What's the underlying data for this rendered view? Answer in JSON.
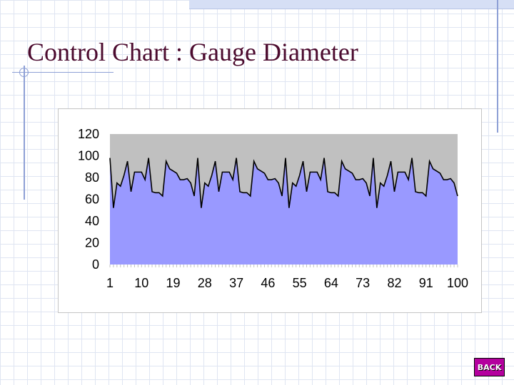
{
  "slide": {
    "title": "Control Chart : Gauge Diameter",
    "back_label": "BACK"
  },
  "colors": {
    "plot_background": "#c0c0c0",
    "area_fill": "#9999ff",
    "line": "#000000",
    "title": "#4b0a2e",
    "back_button": "#b4009e"
  },
  "chart_data": {
    "type": "area",
    "title": "",
    "xlabel": "",
    "ylabel": "",
    "ylim": [
      0,
      120
    ],
    "yticks": [
      0,
      20,
      40,
      60,
      80,
      100,
      120
    ],
    "xlim": [
      1,
      100
    ],
    "xticks": [
      1,
      10,
      19,
      28,
      37,
      46,
      55,
      64,
      73,
      82,
      91,
      100
    ],
    "grid": false,
    "legend": "none",
    "x": [
      1,
      2,
      3,
      4,
      5,
      6,
      7,
      8,
      9,
      10,
      11,
      12,
      13,
      14,
      15,
      16,
      17,
      18,
      19,
      20,
      21,
      22,
      23,
      24,
      25,
      26,
      27,
      28,
      29,
      30,
      31,
      32,
      33,
      34,
      35,
      36,
      37,
      38,
      39,
      40,
      41,
      42,
      43,
      44,
      45,
      46,
      47,
      48,
      49,
      50,
      51,
      52,
      53,
      54,
      55,
      56,
      57,
      58,
      59,
      60,
      61,
      62,
      63,
      64,
      65,
      66,
      67,
      68,
      69,
      70,
      71,
      72,
      73,
      74,
      75,
      76,
      77,
      78,
      79,
      80,
      81,
      82,
      83,
      84,
      85,
      86,
      87,
      88,
      89,
      90,
      91,
      92,
      93,
      94,
      95,
      96,
      97,
      98,
      99,
      100
    ],
    "y": [
      98,
      52,
      75,
      72,
      82,
      95,
      67,
      85,
      85,
      85,
      78,
      98,
      67,
      66,
      66,
      63,
      95,
      88,
      86,
      84,
      78,
      78,
      79,
      75,
      63,
      98,
      52,
      75,
      72,
      82,
      95,
      67,
      85,
      85,
      85,
      78,
      98,
      67,
      66,
      66,
      63,
      95,
      88,
      86,
      84,
      78,
      78,
      79,
      75,
      63,
      98,
      52,
      75,
      72,
      82,
      95,
      67,
      85,
      85,
      85,
      78,
      98,
      67,
      66,
      66,
      63,
      95,
      88,
      86,
      84,
      78,
      78,
      79,
      75,
      63,
      98,
      52,
      75,
      72,
      82,
      95,
      67,
      85,
      85,
      85,
      78,
      98,
      67,
      66,
      66,
      63,
      95,
      88,
      86,
      84,
      78,
      78,
      79,
      75,
      63
    ]
  }
}
